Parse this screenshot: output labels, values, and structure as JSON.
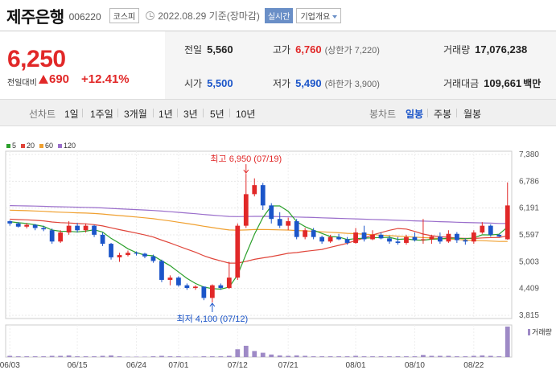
{
  "header": {
    "title": "제주은행",
    "code": "006220",
    "market": "코스피",
    "date": "2022.08.29 기준(장마감)",
    "realtime_label": "실시간",
    "company_info_label": "기업개요"
  },
  "price": {
    "current": "6,250",
    "change_label": "전일대비",
    "change": "690",
    "change_pct": "+12.41%"
  },
  "stats": {
    "prev_label": "전일",
    "prev": "5,560",
    "high_label": "고가",
    "high": "6,760",
    "high_limit": "(상한가 7,220)",
    "volume_label": "거래량",
    "volume": "17,076,238",
    "open_label": "시가",
    "open": "5,500",
    "low_label": "저가",
    "low": "5,490",
    "low_limit": "(하한가 3,900)",
    "amount_label": "거래대금",
    "amount": "109,661",
    "amount_unit": "백만"
  },
  "tabs": {
    "line_label": "선차트",
    "line_periods": [
      "1일",
      "1주일",
      "3개월",
      "1년",
      "3년",
      "5년",
      "10년"
    ],
    "candle_label": "봉차트",
    "candle_periods": [
      "일봉",
      "주봉",
      "월봉"
    ],
    "active_candle": "일봉"
  },
  "legend": {
    "ma5": "5",
    "ma20": "20",
    "ma60": "60",
    "ma120": "120",
    "ma5_color": "#2ca02c",
    "ma20_color": "#e0453a",
    "ma60_color": "#f0a030",
    "ma120_color": "#9a6ecb"
  },
  "colors": {
    "up": "#e12828",
    "down": "#1b55c9",
    "volume": "#9e8ac6"
  },
  "chart_data": {
    "type": "candlestick",
    "y_ticks": [
      "7,380",
      "6,786",
      "6,191",
      "5,597",
      "5,003",
      "4,409",
      "3,815"
    ],
    "ylim": [
      3815,
      7380
    ],
    "x_ticks": [
      "06/03",
      "06/15",
      "06/24",
      "07/01",
      "07/12",
      "07/21",
      "08/01",
      "08/10",
      "08/22"
    ],
    "annotations": {
      "high": "최고 6,950 (07/19)",
      "low": "최저 4,100 (07/12)"
    },
    "volume_label": "거래량",
    "candles": [
      [
        5900,
        5920,
        5800,
        5850
      ],
      [
        5850,
        5880,
        5760,
        5780
      ],
      [
        5780,
        5860,
        5740,
        5820
      ],
      [
        5820,
        5840,
        5700,
        5750
      ],
      [
        5750,
        5800,
        5680,
        5720
      ],
      [
        5700,
        5740,
        5400,
        5450
      ],
      [
        5450,
        5700,
        5420,
        5650
      ],
      [
        5650,
        5900,
        5600,
        5800
      ],
      [
        5800,
        5860,
        5650,
        5700
      ],
      [
        5700,
        5850,
        5650,
        5800
      ],
      [
        5800,
        5820,
        5550,
        5600
      ],
      [
        5600,
        5650,
        5350,
        5400
      ],
      [
        5400,
        5420,
        5050,
        5100
      ],
      [
        5100,
        5200,
        5000,
        5150
      ],
      [
        5150,
        5250,
        5120,
        5200
      ],
      [
        5200,
        5230,
        5140,
        5180
      ],
      [
        5180,
        5200,
        5080,
        5120
      ],
      [
        5120,
        5160,
        4980,
        5020
      ],
      [
        5020,
        5050,
        4550,
        4600
      ],
      [
        4600,
        4700,
        4480,
        4650
      ],
      [
        4650,
        4680,
        4450,
        4480
      ],
      [
        4480,
        4520,
        4380,
        4420
      ],
      [
        4420,
        4480,
        4380,
        4450
      ],
      [
        4450,
        4460,
        4150,
        4200
      ],
      [
        4200,
        4500,
        4100,
        4480
      ],
      [
        4480,
        4520,
        4380,
        4420
      ],
      [
        4420,
        5000,
        4400,
        4650
      ],
      [
        4650,
        5850,
        4600,
        5800
      ],
      [
        5800,
        6950,
        5750,
        6500
      ],
      [
        6500,
        6850,
        6450,
        6700
      ],
      [
        6700,
        6750,
        6150,
        6250
      ],
      [
        6250,
        6300,
        5850,
        5950
      ],
      [
        5950,
        6100,
        5750,
        5800
      ],
      [
        5800,
        5980,
        5700,
        5900
      ],
      [
        5900,
        5950,
        5500,
        5550
      ],
      [
        5550,
        5750,
        5500,
        5700
      ],
      [
        5700,
        5750,
        5500,
        5550
      ],
      [
        5550,
        5580,
        5400,
        5450
      ],
      [
        5450,
        5600,
        5420,
        5550
      ],
      [
        5550,
        5620,
        5480,
        5500
      ],
      [
        5500,
        5550,
        5380,
        5420
      ],
      [
        5420,
        5750,
        5400,
        5650
      ],
      [
        5650,
        5800,
        5450,
        5500
      ],
      [
        5500,
        5700,
        5480,
        5600
      ],
      [
        5600,
        5650,
        5500,
        5520
      ],
      [
        5520,
        5580,
        5400,
        5450
      ],
      [
        5450,
        5550,
        5380,
        5420
      ],
      [
        5420,
        5600,
        5380,
        5550
      ],
      [
        5550,
        5650,
        5450,
        5480
      ],
      [
        5480,
        5950,
        5400,
        5500
      ],
      [
        5500,
        5600,
        5400,
        5560
      ],
      [
        5560,
        5650,
        5400,
        5450
      ],
      [
        5450,
        5700,
        5420,
        5620
      ],
      [
        5620,
        5660,
        5420,
        5480
      ],
      [
        5480,
        5520,
        5380,
        5450
      ],
      [
        5450,
        5700,
        5400,
        5650
      ],
      [
        5650,
        5880,
        5620,
        5800
      ],
      [
        5800,
        5830,
        5560,
        5600
      ],
      [
        5600,
        5620,
        5550,
        5560
      ],
      [
        5500,
        6760,
        5490,
        6250
      ]
    ],
    "volumes": [
      3,
      2,
      2,
      2,
      2,
      3,
      3,
      4,
      2,
      2,
      2,
      3,
      4,
      2,
      1,
      1,
      1,
      2,
      3,
      2,
      2,
      1,
      1,
      2,
      2,
      2,
      3,
      18,
      26,
      14,
      10,
      6,
      4,
      3,
      4,
      3,
      2,
      2,
      2,
      2,
      2,
      3,
      2,
      2,
      2,
      2,
      2,
      2,
      2,
      5,
      3,
      3,
      3,
      2,
      2,
      3,
      4,
      3,
      2,
      70
    ],
    "volume_ticks": [
      "0",
      "35",
      "70"
    ],
    "x_tick_index": [
      0,
      8,
      15,
      20,
      27,
      33,
      41,
      48,
      55
    ]
  }
}
